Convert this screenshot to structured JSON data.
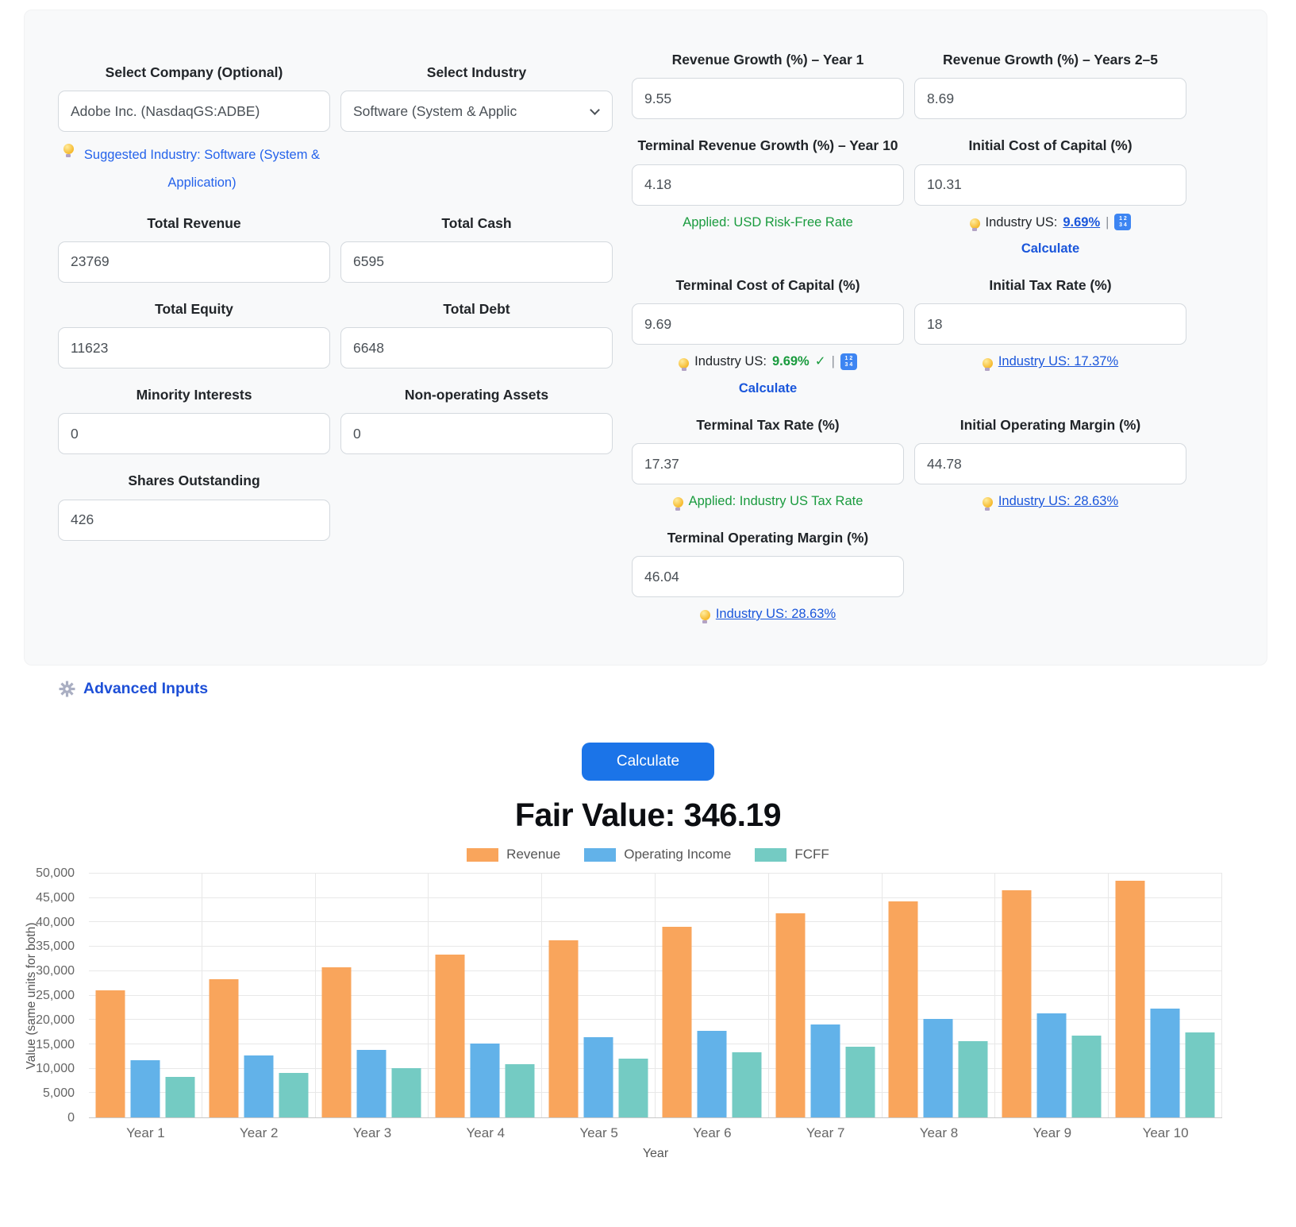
{
  "form": {
    "company": {
      "label": "Select Company (Optional)",
      "value": "Adobe Inc. (NasdaqGS:ADBE)",
      "suggestion": "Suggested Industry: Software (System & Application)"
    },
    "industry": {
      "label": "Select Industry",
      "value": "Software (System & Applic"
    },
    "total_revenue": {
      "label": "Total Revenue",
      "value": "23769"
    },
    "total_cash": {
      "label": "Total Cash",
      "value": "6595"
    },
    "total_equity": {
      "label": "Total Equity",
      "value": "11623"
    },
    "total_debt": {
      "label": "Total Debt",
      "value": "6648"
    },
    "minority_interests": {
      "label": "Minority Interests",
      "value": "0"
    },
    "non_operating_assets": {
      "label": "Non-operating Assets",
      "value": "0"
    },
    "shares_outstanding": {
      "label": "Shares Outstanding",
      "value": "426"
    },
    "revenue_growth_y1": {
      "label": "Revenue Growth (%) – Year 1",
      "value": "9.55"
    },
    "revenue_growth_y2_5": {
      "label": "Revenue Growth (%) – Years 2–5",
      "value": "8.69"
    },
    "terminal_revenue_growth": {
      "label": "Terminal Revenue Growth (%) – Year 10",
      "value": "4.18",
      "note": "Applied: USD Risk-Free Rate"
    },
    "initial_cost_of_capital": {
      "label": "Initial Cost of Capital (%)",
      "value": "10.31",
      "note_prefix": "Industry US:",
      "note_link": "9.69%",
      "calculate_link": "Calculate"
    },
    "terminal_cost_of_capital": {
      "label": "Terminal Cost of Capital (%)",
      "value": "9.69",
      "note_prefix": "Industry US:",
      "note_value": "9.69%",
      "check": "✓",
      "calculate_link": "Calculate"
    },
    "initial_tax_rate": {
      "label": "Initial Tax Rate (%)",
      "value": "18",
      "note_link": "Industry US: 17.37%"
    },
    "terminal_tax_rate": {
      "label": "Terminal Tax Rate (%)",
      "value": "17.37",
      "note": "Applied: Industry US Tax Rate"
    },
    "initial_operating_margin": {
      "label": "Initial Operating Margin (%)",
      "value": "44.78",
      "note_link": "Industry US: 28.63%"
    },
    "terminal_operating_margin": {
      "label": "Terminal Operating Margin (%)",
      "value": "46.04",
      "note_link": "Industry US: 28.63%"
    }
  },
  "ui": {
    "separator": "|"
  },
  "actions": {
    "advanced_inputs": "Advanced Inputs",
    "calculate": "Calculate"
  },
  "result": {
    "fair_value": "Fair Value: 346.19"
  },
  "colors": {
    "button_blue": "#1b74e8",
    "link_blue": "#1a56db",
    "applied_green": "#1a9b3e",
    "card_background": "#f8f9fa"
  },
  "chart_data": {
    "type": "bar",
    "categories": [
      "Year 1",
      "Year 2",
      "Year 3",
      "Year 4",
      "Year 5",
      "Year 6",
      "Year 7",
      "Year 8",
      "Year 9",
      "Year 10"
    ],
    "series": [
      {
        "name": "Revenue",
        "color": "#F9A55C",
        "values": [
          26040,
          28300,
          30760,
          33430,
          36340,
          39170,
          41870,
          44370,
          46630,
          48580
        ]
      },
      {
        "name": "Operating Income",
        "color": "#62B2E9",
        "values": [
          11650,
          12700,
          13850,
          15100,
          16450,
          17800,
          19100,
          20250,
          21350,
          22350
        ]
      },
      {
        "name": "FCFF",
        "color": "#74CBC3",
        "values": [
          8300,
          9100,
          10100,
          10900,
          12100,
          13300,
          14500,
          15650,
          16800,
          17450
        ]
      }
    ],
    "title": "",
    "xlabel": "Year",
    "ylabel": "Value (same units for both)",
    "ylim": [
      0,
      50000
    ],
    "ytick_step": 5000,
    "grid": true,
    "legend_position": "top"
  }
}
